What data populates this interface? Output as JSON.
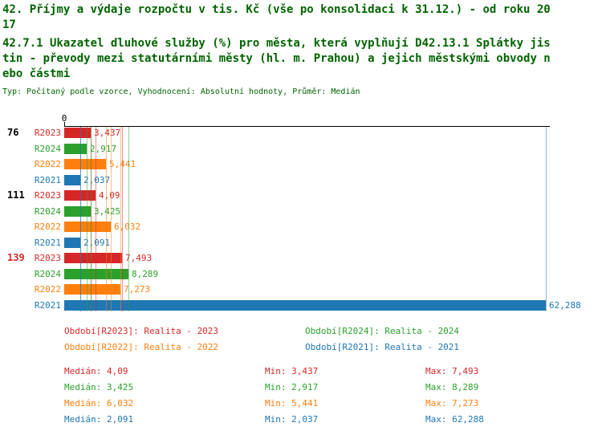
{
  "title": {
    "lines": [
      "42. Příjmy a výdaje rozpočtu v tis. Kč (vše po konsolidaci k 31.12.) - od roku 20",
      "17",
      "42.7.1 Ukazatel dluhové služby (%) pro města, která vyplňují D42.13.1 Splátky jis",
      "tin - převody mezi statutárními městy (hl. m. Prahou) a jejich městskými obvody n",
      "ebo částmi"
    ],
    "meta": "Typ: Počítaný podle vzorce, Vyhodnocení: Absolutní hodnoty, Průměr: Medián",
    "color": "#006400"
  },
  "chart_data": {
    "type": "bar",
    "orientation": "horizontal",
    "grid": false,
    "legend_position": "bottom",
    "value_axis": {
      "zero_label": "0",
      "min": 0,
      "max": 62.288
    },
    "categories": [
      {
        "label": "76",
        "color": "#000000"
      },
      {
        "label": "111",
        "color": "#000000"
      },
      {
        "label": "139",
        "color": "#d62728"
      }
    ],
    "series": [
      {
        "name": "R2023",
        "color": "#d62728",
        "values": [
          3.437,
          4.09,
          7.493
        ],
        "display": [
          "3,437",
          "4,09",
          "7,493"
        ],
        "min": 3.437,
        "median": 4.09,
        "max": 7.493,
        "min_display": "3,437",
        "median_display": "4,09",
        "max_display": "7,493"
      },
      {
        "name": "R2024",
        "color": "#2ca02c",
        "values": [
          2.917,
          3.425,
          8.289
        ],
        "display": [
          "2,917",
          "3,425",
          "8,289"
        ],
        "min": 2.917,
        "median": 3.425,
        "max": 8.289,
        "min_display": "2,917",
        "median_display": "3,425",
        "max_display": "8,289"
      },
      {
        "name": "R2022",
        "color": "#ff7f0e",
        "values": [
          5.441,
          6.032,
          7.273
        ],
        "display": [
          "5,441",
          "6,032",
          "7,273"
        ],
        "min": 5.441,
        "median": 6.032,
        "max": 7.273,
        "min_display": "5,441",
        "median_display": "6,032",
        "max_display": "7,273"
      },
      {
        "name": "R2021",
        "color": "#1f77b4",
        "values": [
          2.037,
          2.091,
          62.288
        ],
        "display": [
          "2,037",
          "2,091",
          "62,288"
        ],
        "min": 2.037,
        "median": 2.091,
        "max": 62.288,
        "min_display": "2,037",
        "median_display": "2,091",
        "max_display": "62,288"
      }
    ]
  },
  "legend": {
    "entries": [
      {
        "name": "R2023",
        "label": "Období[R2023]: Realita - 2023",
        "color": "#d62728"
      },
      {
        "name": "R2024",
        "label": "Období[R2024]: Realita - 2024",
        "color": "#2ca02c"
      },
      {
        "name": "R2022",
        "label": "Období[R2022]: Realita - 2022",
        "color": "#ff7f0e"
      },
      {
        "name": "R2021",
        "label": "Období[R2021]: Realita - 2021",
        "color": "#1f77b4"
      }
    ]
  },
  "stats_labels": {
    "median": "Medián",
    "min": "Min",
    "max": "Max"
  }
}
